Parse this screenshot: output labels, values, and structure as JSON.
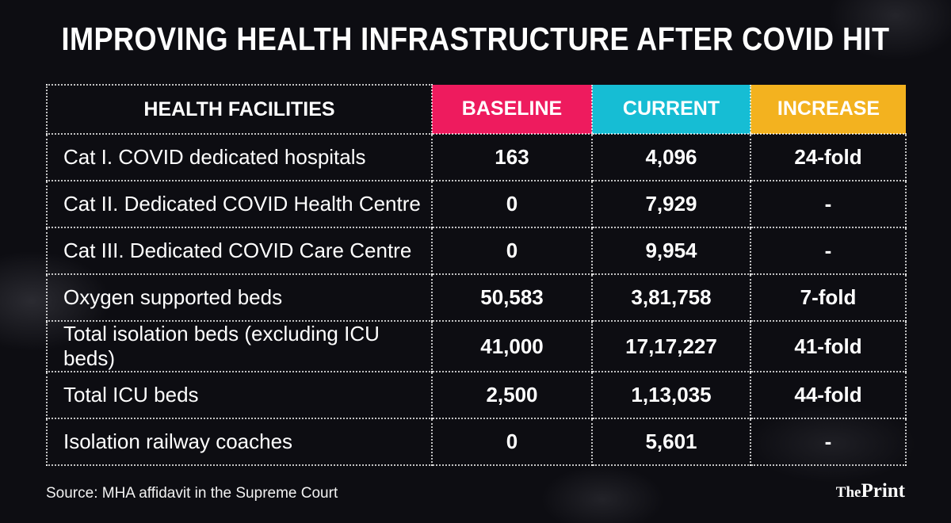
{
  "title": "IMPROVING HEALTH INFRASTRUCTURE AFTER COVID HIT",
  "colors": {
    "baseline": "#ee1b5e",
    "current": "#16bdd4",
    "increase": "#f3b21f",
    "background": "#0d0d12"
  },
  "chart_data": {
    "type": "table",
    "columns": [
      "HEALTH FACILITIES",
      "BASELINE",
      "CURRENT",
      "INCREASE"
    ],
    "rows": [
      [
        "Cat I. COVID dedicated hospitals",
        "163",
        "4,096",
        "24-fold"
      ],
      [
        "Cat II. Dedicated COVID Health Centre",
        "0",
        "7,929",
        "-"
      ],
      [
        "Cat III. Dedicated COVID Care Centre",
        "0",
        "9,954",
        "-"
      ],
      [
        "Oxygen supported beds",
        "50,583",
        "3,81,758",
        "7-fold"
      ],
      [
        "Total isolation beds (excluding ICU beds)",
        "41,000",
        "17,17,227",
        "41-fold"
      ],
      [
        "Total ICU beds",
        "2,500",
        "1,13,035",
        "44-fold"
      ],
      [
        "Isolation railway coaches",
        "0",
        "5,601",
        "-"
      ]
    ]
  },
  "source": "Source: MHA affidavit in the Supreme Court",
  "logo": {
    "prefix": "The",
    "name": "Print"
  }
}
